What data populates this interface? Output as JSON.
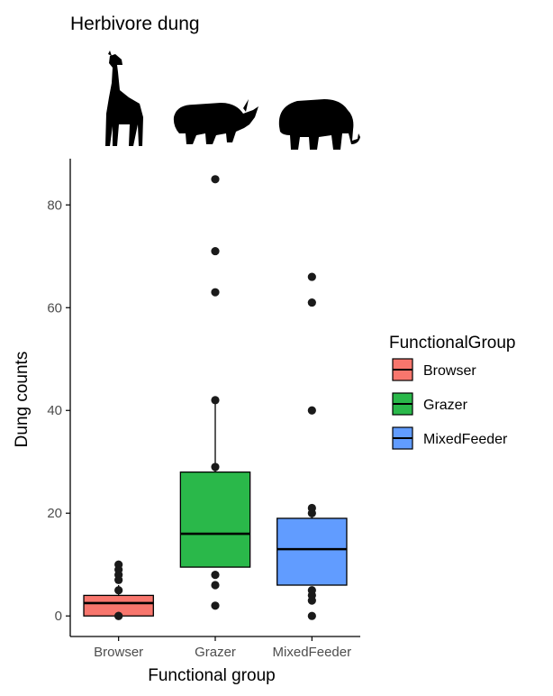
{
  "chart_data": {
    "type": "boxplot",
    "title": "Herbivore dung",
    "xlabel": "Functional group",
    "ylabel": "Dung counts",
    "ylim": [
      -4,
      89
    ],
    "yticks": [
      0,
      20,
      40,
      60,
      80
    ],
    "categories": [
      "Browser",
      "Grazer",
      "MixedFeeder"
    ],
    "legend": {
      "title": "FunctionalGroup",
      "placement": "right",
      "entries": [
        "Browser",
        "Grazer",
        "MixedFeeder"
      ]
    },
    "series": [
      {
        "category": "Browser",
        "color": "#f8766d",
        "icon": "giraffe-icon",
        "whisker_low": 0,
        "q1": 0,
        "median": 2.5,
        "q3": 4,
        "whisker_high": 6,
        "outliers": [
          7,
          8,
          9,
          10,
          0,
          0,
          5
        ]
      },
      {
        "category": "Grazer",
        "color": "#2ab84a",
        "icon": "rhino-icon",
        "whisker_low": 9.5,
        "q1": 9.5,
        "median": 16,
        "q3": 28,
        "whisker_high": 42,
        "outliers": [
          85,
          71,
          63,
          42,
          29,
          8,
          6,
          2
        ]
      },
      {
        "category": "MixedFeeder",
        "color": "#619cff",
        "icon": "elephant-icon",
        "whisker_low": 6,
        "q1": 6,
        "median": 13,
        "q3": 19,
        "whisker_high": 21,
        "outliers": [
          66,
          61,
          40,
          21,
          20,
          5,
          4,
          3,
          0
        ]
      }
    ]
  }
}
